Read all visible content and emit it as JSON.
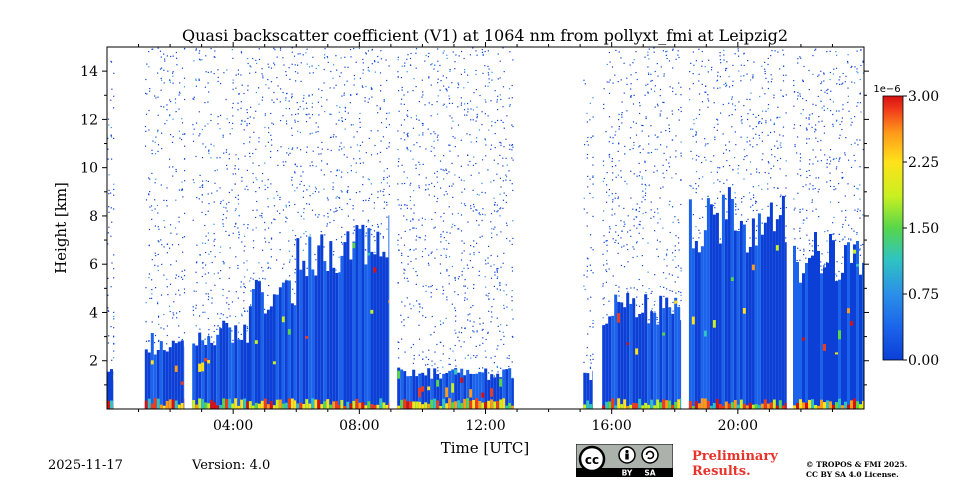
{
  "chart_data": {
    "type": "heatmap",
    "title": "Quasi backscatter coefficient (V1) at 1064 nm from pollyxt_fmi at Leipzig2",
    "xlabel": "Time [UTC]",
    "ylabel": "Height [km]",
    "xlim_hours": [
      0,
      24
    ],
    "ylim_km": [
      0,
      15
    ],
    "x_ticks": [
      {
        "hour": 4,
        "label": "04:00"
      },
      {
        "hour": 8,
        "label": "08:00"
      },
      {
        "hour": 12,
        "label": "12:00"
      },
      {
        "hour": 16,
        "label": "16:00"
      },
      {
        "hour": 20,
        "label": "20:00"
      }
    ],
    "y_ticks": [
      {
        "km": 2,
        "label": "2"
      },
      {
        "km": 4,
        "label": "4"
      },
      {
        "km": 6,
        "label": "6"
      },
      {
        "km": 8,
        "label": "8"
      },
      {
        "km": 10,
        "label": "10"
      },
      {
        "km": 12,
        "label": "12"
      },
      {
        "km": 14,
        "label": "14"
      }
    ],
    "colorbar": {
      "range": [
        0,
        3.0
      ],
      "exponent_label": "1e−6",
      "ticks": [
        {
          "value": 0.0,
          "label": "0.00"
        },
        {
          "value": 0.75,
          "label": "0.75"
        },
        {
          "value": 1.5,
          "label": "1.50"
        },
        {
          "value": 2.25,
          "label": "2.25"
        },
        {
          "value": 3.0,
          "label": "3.00"
        }
      ],
      "colormap": [
        "#0b3fd6",
        "#1a63ea",
        "#2b8fe8",
        "#2fc3c2",
        "#57d64a",
        "#c8f020",
        "#ffe21a",
        "#ff9a1a",
        "#f03a1a",
        "#d81010"
      ]
    },
    "data_gaps_hours": [
      [
        0.2,
        1.2
      ],
      [
        2.45,
        2.7
      ],
      [
        8.95,
        9.2
      ],
      [
        12.9,
        15.1
      ],
      [
        15.4,
        15.7
      ],
      [
        18.2,
        18.45
      ],
      [
        21.55,
        21.75
      ]
    ],
    "profiles": [
      {
        "start": 0.0,
        "end": 0.2,
        "top_km": 1.5,
        "max_km": 14.5
      },
      {
        "start": 1.2,
        "end": 2.45,
        "top_km": 2.8,
        "max_km": 15.0
      },
      {
        "start": 2.7,
        "end": 4.5,
        "top_km": 3.2,
        "max_km": 15.0
      },
      {
        "start": 4.5,
        "end": 6.0,
        "top_km": 4.8,
        "max_km": 15.0
      },
      {
        "start": 6.0,
        "end": 7.4,
        "top_km": 6.4,
        "max_km": 15.0
      },
      {
        "start": 7.4,
        "end": 8.95,
        "top_km": 7.0,
        "max_km": 15.0
      },
      {
        "start": 9.2,
        "end": 12.9,
        "top_km": 1.5,
        "max_km": 15.0
      },
      {
        "start": 15.1,
        "end": 15.4,
        "top_km": 1.5,
        "max_km": 14.0
      },
      {
        "start": 15.7,
        "end": 18.2,
        "top_km": 4.2,
        "max_km": 15.0
      },
      {
        "start": 18.45,
        "end": 21.55,
        "top_km": 8.0,
        "max_km": 15.0
      },
      {
        "start": 21.75,
        "end": 24.0,
        "top_km": 6.5,
        "max_km": 15.0
      }
    ]
  },
  "meta": {
    "date": "2025-11-17",
    "version": "Version: 4.0",
    "preliminary_line1": "Preliminary",
    "preliminary_line2": "Results.",
    "copyright_line1": "© TROPOS & FMI 2025.",
    "copyright_line2": "CC BY SA 4.0 License.",
    "badge_cc": "cc",
    "badge_by": "BY",
    "badge_sa": "SA"
  }
}
